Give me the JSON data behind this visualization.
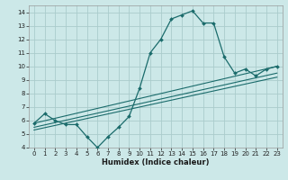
{
  "xlabel": "Humidex (Indice chaleur)",
  "bg_color": "#cce8e8",
  "line_color": "#1a6b6b",
  "grid_color": "#aacccc",
  "xlim": [
    -0.5,
    23.5
  ],
  "ylim": [
    4,
    14.5
  ],
  "xticks": [
    0,
    1,
    2,
    3,
    4,
    5,
    6,
    7,
    8,
    9,
    10,
    11,
    12,
    13,
    14,
    15,
    16,
    17,
    18,
    19,
    20,
    21,
    22,
    23
  ],
  "yticks": [
    4,
    5,
    6,
    7,
    8,
    9,
    10,
    11,
    12,
    13,
    14
  ],
  "line1_x": [
    0,
    1,
    2,
    3,
    4,
    5,
    6,
    7,
    8,
    9,
    10,
    11,
    12,
    13,
    14,
    15,
    16,
    17,
    18,
    19,
    20,
    21,
    22,
    23
  ],
  "line1_y": [
    5.8,
    6.5,
    6.0,
    5.7,
    5.7,
    4.8,
    4.0,
    4.8,
    5.5,
    6.3,
    8.4,
    11.0,
    12.0,
    13.5,
    13.8,
    14.1,
    13.2,
    13.2,
    10.7,
    9.5,
    9.8,
    9.3,
    9.8,
    10.0
  ],
  "line2_x": [
    0,
    23
  ],
  "line2_y": [
    5.8,
    10.0
  ],
  "line3_x": [
    0,
    23
  ],
  "line3_y": [
    5.5,
    9.5
  ],
  "line4_x": [
    0,
    23
  ],
  "line4_y": [
    5.3,
    9.2
  ]
}
